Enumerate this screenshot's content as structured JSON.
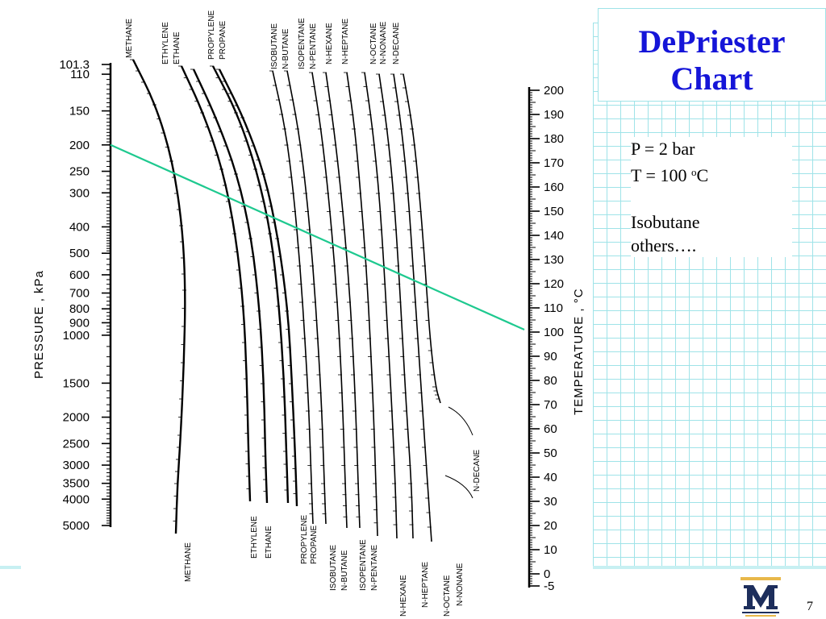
{
  "title": {
    "line1": "DePriester",
    "line2": "Chart"
  },
  "notes": {
    "pressure": "P = 2 bar",
    "temp_prefix": "T = 100 ",
    "temp_sup": "o",
    "temp_suffix": "C",
    "component": "Isobutane",
    "others": "others…."
  },
  "page_number": "7",
  "colors": {
    "title": "#1515d8",
    "grid": "#9fe3e8",
    "operating_line": "#1ec98f"
  },
  "pressure_axis": {
    "label": "PRESSURE , kPa",
    "ticks": [
      "101.3",
      "110",
      "150",
      "200",
      "250",
      "300",
      "400",
      "500",
      "600",
      "700",
      "800",
      "900",
      "1000",
      "1500",
      "2000",
      "2500",
      "3000",
      "3500",
      "4000",
      "5000"
    ]
  },
  "temperature_axis": {
    "label": "TEMPERATURE , °C",
    "ticks": [
      "200",
      "190",
      "180",
      "170",
      "160",
      "150",
      "140",
      "130",
      "120",
      "110",
      "100",
      "90",
      "80",
      "70",
      "60",
      "50",
      "40",
      "30",
      "20",
      "10",
      "0",
      "-5"
    ]
  },
  "top_labels": [
    "METHANE",
    "ETHYLENE",
    "ETHANE",
    "PROPYLENE",
    "PROPANE",
    "ISOBUTANE",
    "N-BUTANE",
    "ISOPENTANE",
    "N-PENTANE",
    "N-HEXANE",
    "N-HEPTANE",
    "N-OCTANE",
    "N-NONANE",
    "N-DECANE"
  ],
  "bottom_labels": [
    "METHANE",
    "ETHYLENE",
    "ETHANE",
    "PROPYLENE",
    "PROPANE",
    "ISOBUTANE",
    "N-BUTANE",
    "ISOPENTANE",
    "N-PENTANE",
    "N-HEXANE",
    "N-HEPTANE",
    "N-OCTANE",
    "N-NONANE"
  ],
  "side_label": "N-DECANE",
  "operating_line": {
    "pressure_kpa": 200,
    "temperature_c": 100
  }
}
